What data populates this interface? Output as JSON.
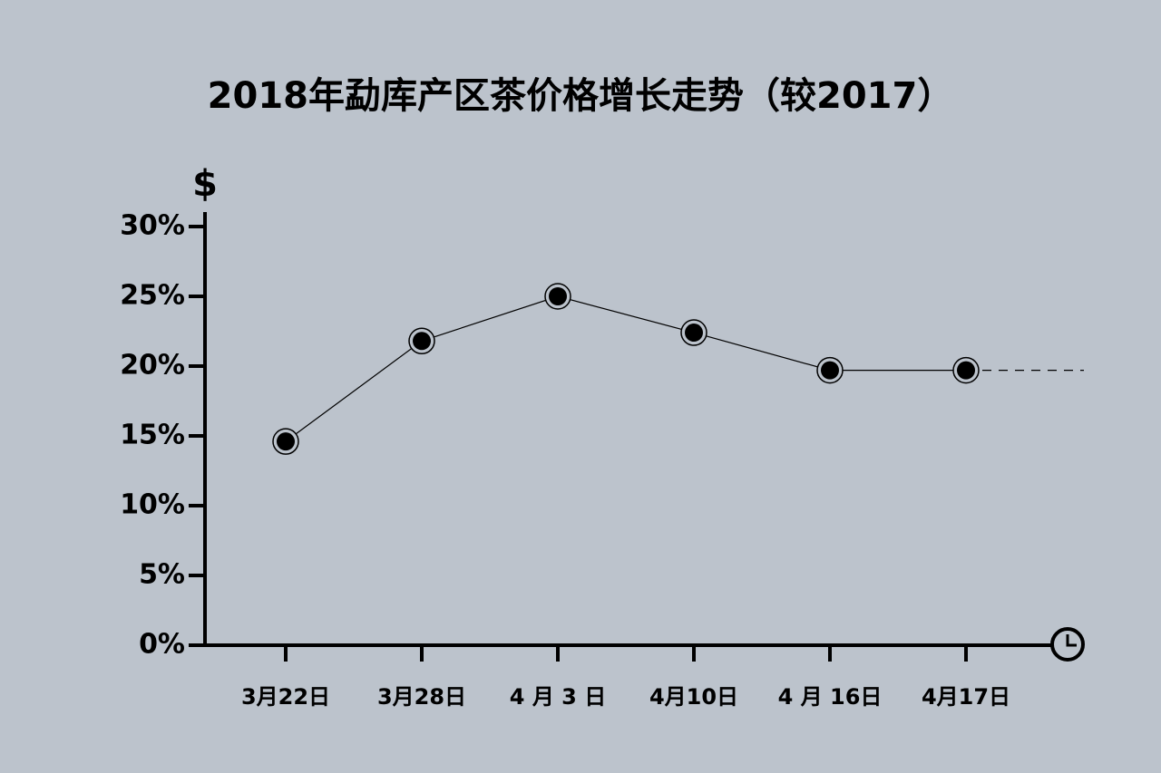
{
  "chart_data": {
    "type": "line",
    "title": "2018年勐库产区茶价格增长走势（较2017）",
    "y_label": "$",
    "categories": [
      "3月22日",
      "3月28日",
      "4 月 3 日",
      "4月10日",
      "4 月 16日",
      "4月17日"
    ],
    "values": [
      14.6,
      21.8,
      25,
      22.4,
      19.7,
      19.7
    ],
    "color": "#000000",
    "ylim": [
      0,
      30
    ],
    "yticks": [
      {
        "value": 0,
        "label": "0%"
      },
      {
        "value": 5,
        "label": "5%"
      },
      {
        "value": 10,
        "label": "10%"
      },
      {
        "value": 15,
        "label": "15%"
      },
      {
        "value": 20,
        "label": "20%"
      },
      {
        "value": 25,
        "label": "25%"
      },
      {
        "value": 30,
        "label": "30%"
      }
    ]
  }
}
